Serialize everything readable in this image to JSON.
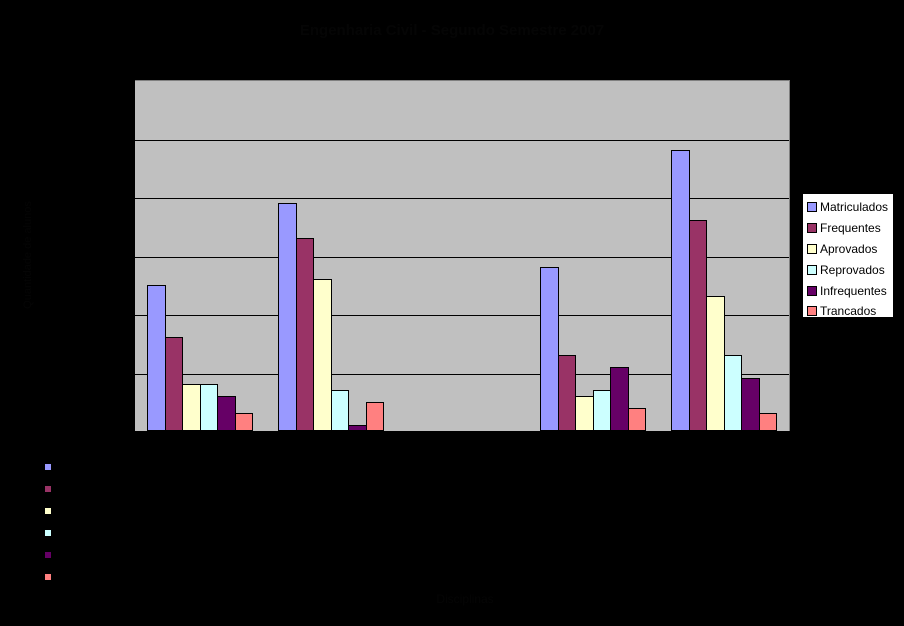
{
  "chart": {
    "title": "Engenharia Civil - Segundo Semestre 2007",
    "ylabel": "Quantidade de alunos",
    "xlabel": "Disciplinas"
  },
  "legend": {
    "items": [
      {
        "label": "Matriculados",
        "color": "#9999ff"
      },
      {
        "label": "Frequentes",
        "color": "#993366"
      },
      {
        "label": "Aprovados",
        "color": "#ffffcc"
      },
      {
        "label": "Reprovados",
        "color": "#ccffff"
      },
      {
        "label": "Infrequentes",
        "color": "#660066"
      },
      {
        "label": "Trancados",
        "color": "#ff8080"
      }
    ]
  },
  "chart_data": {
    "type": "bar",
    "title": "Engenharia Civil - Segundo Semestre 2007",
    "xlabel": "Disciplinas",
    "ylabel": "Quantidade de alunos",
    "categories": [
      "",
      "",
      "",
      "",
      ""
    ],
    "series": [
      {
        "name": "Matriculados",
        "color": "#9999ff",
        "values": [
          2.5,
          3.9,
          0,
          2.8,
          4.8
        ]
      },
      {
        "name": "Frequentes",
        "color": "#993366",
        "values": [
          1.6,
          3.3,
          0,
          1.3,
          3.6
        ]
      },
      {
        "name": "Aprovados",
        "color": "#ffffcc",
        "values": [
          0.8,
          2.6,
          0,
          0.6,
          2.3
        ]
      },
      {
        "name": "Reprovados",
        "color": "#ccffff",
        "values": [
          0.8,
          0.7,
          0,
          0.7,
          1.3
        ]
      },
      {
        "name": "Infrequentes",
        "color": "#660066",
        "values": [
          0.6,
          0.1,
          0,
          1.1,
          0.9
        ]
      },
      {
        "name": "Trancados",
        "color": "#ff8080",
        "values": [
          0.3,
          0.5,
          0,
          0.4,
          0.3
        ]
      }
    ],
    "ylim": [
      0,
      6
    ],
    "gridlines": 6,
    "grid": true,
    "legend_position": "right",
    "plot_background": "#c0c0c0",
    "note": "Axis tick labels, category labels and title are rendered in black on black and are illegible; values are relative to gridline units."
  }
}
